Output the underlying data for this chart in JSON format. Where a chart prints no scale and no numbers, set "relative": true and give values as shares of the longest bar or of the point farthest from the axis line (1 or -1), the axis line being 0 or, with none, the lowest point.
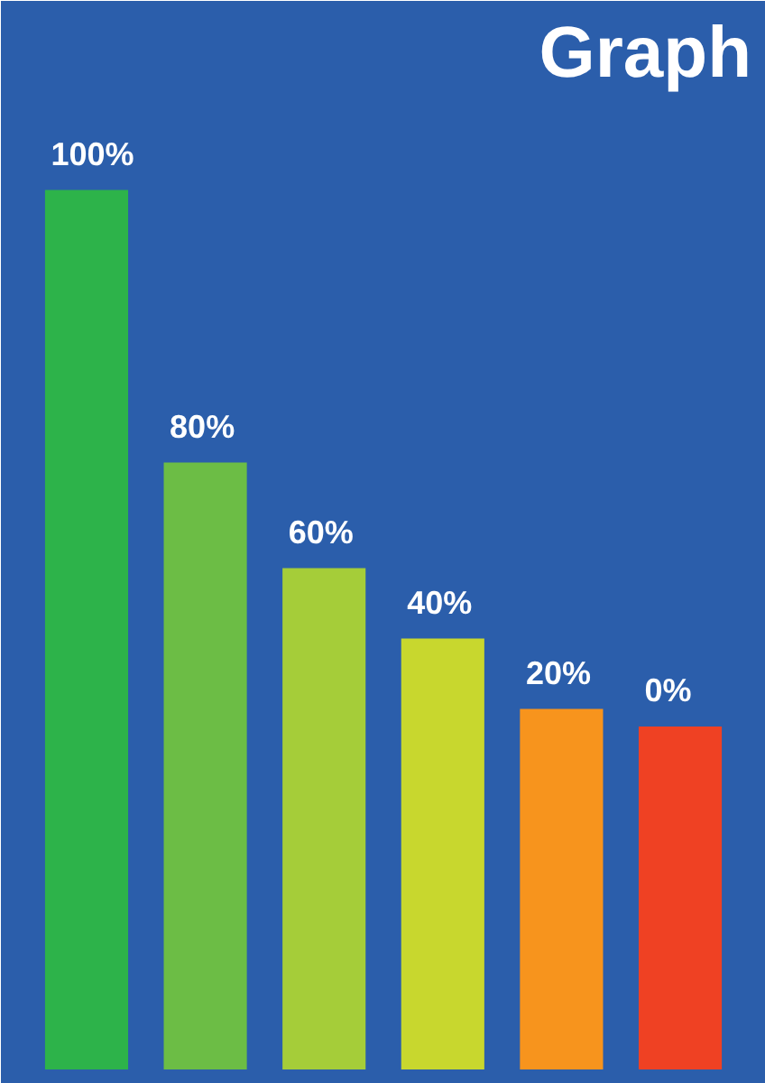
{
  "chart_data": {
    "type": "bar",
    "title": "Graph",
    "relative": true,
    "grid": false,
    "categories": [
      "100%",
      "80%",
      "60%",
      "40%",
      "20%",
      "0%"
    ],
    "values": [
      1,
      0.69,
      0.57,
      0.49,
      0.41,
      0.39
    ],
    "colors": [
      "#2db34a",
      "#6cbd45",
      "#a5cd39",
      "#c8d72e",
      "#f7941d",
      "#ef4123"
    ]
  }
}
